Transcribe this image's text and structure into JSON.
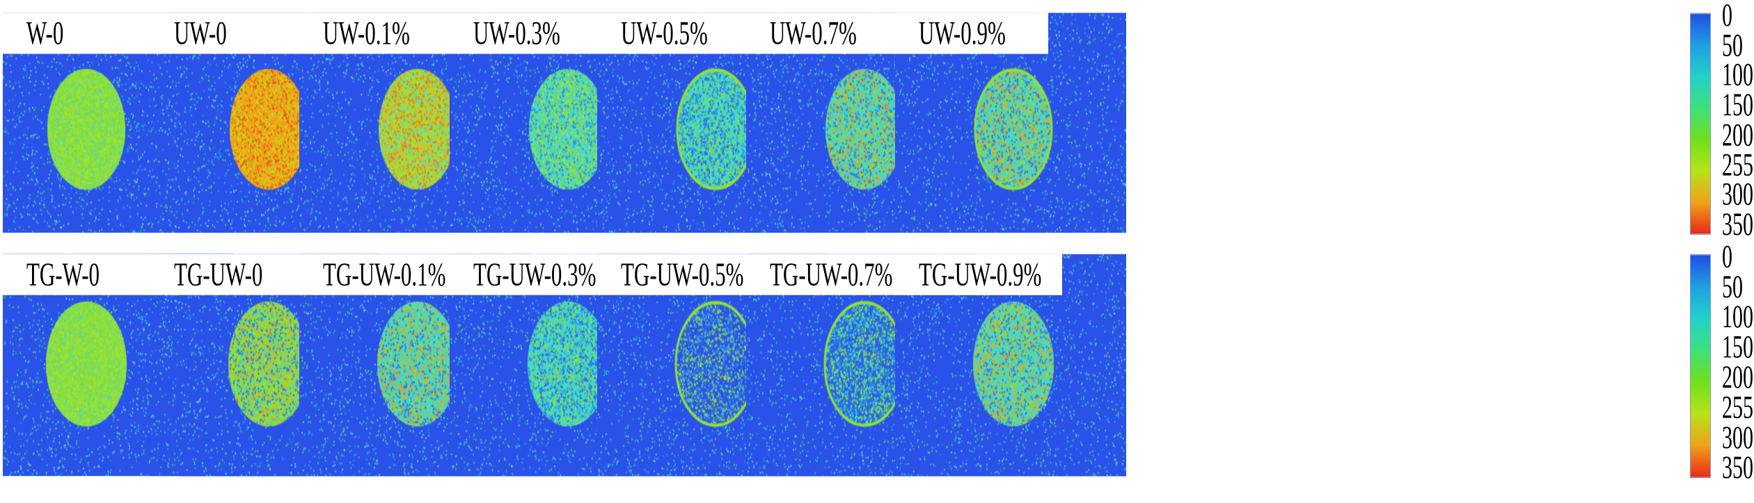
{
  "rows": [
    {
      "panels": [
        {
          "label": "W-0",
          "pattern": "uniform-green"
        },
        {
          "label": "UW-0",
          "pattern": "orange-red"
        },
        {
          "label": "UW-0.1%",
          "pattern": "mixed-green-orange"
        },
        {
          "label": "UW-0.3%",
          "pattern": "cyan-green"
        },
        {
          "label": "UW-0.5%",
          "pattern": "cyan-blue-ring"
        },
        {
          "label": "UW-0.7%",
          "pattern": "cyan-orange"
        },
        {
          "label": "UW-0.9%",
          "pattern": "ring-orange-top"
        }
      ]
    },
    {
      "panels": [
        {
          "label": "TG-W-0",
          "pattern": "uniform-green"
        },
        {
          "label": "TG-UW-0",
          "pattern": "green-orange-speckle"
        },
        {
          "label": "TG-UW-0.1%",
          "pattern": "cyan-orange"
        },
        {
          "label": "TG-UW-0.3%",
          "pattern": "cyan-blue-speckle"
        },
        {
          "label": "TG-UW-0.5%",
          "pattern": "ring-blue-center"
        },
        {
          "label": "TG-UW-0.7%",
          "pattern": "ring-cyan-left"
        },
        {
          "label": "TG-UW-0.9%",
          "pattern": "cyan-green-orange"
        }
      ]
    }
  ],
  "colorbar": {
    "ticks": [
      "0",
      "50",
      "100",
      "150",
      "200",
      "255",
      "300",
      "350"
    ],
    "range": [
      0,
      350
    ],
    "colors": [
      "#1f4fe6",
      "#1fa0e0",
      "#22d2c8",
      "#3fe07a",
      "#6fe01a",
      "#b8e21a",
      "#f0a21a",
      "#e82a1a"
    ]
  }
}
